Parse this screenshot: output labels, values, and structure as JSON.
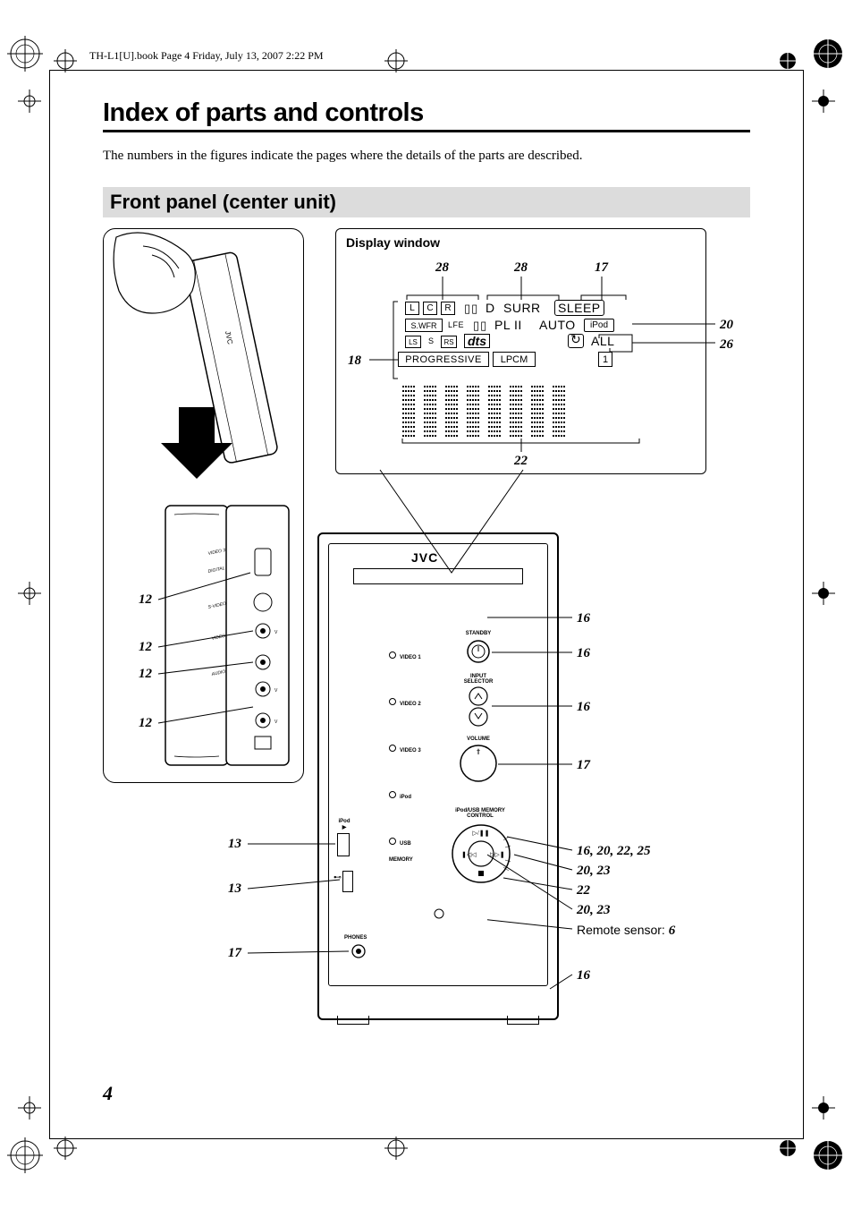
{
  "header": {
    "book_stamp": "TH-L1[U].book  Page 4  Friday, July 13, 2007  2:22 PM"
  },
  "title": "Index of parts and controls",
  "intro": "The numbers in the figures indicate the pages where the details of the parts are described.",
  "section_heading": "Front panel (center unit)",
  "page_number": "4",
  "display_window": {
    "title": "Display window",
    "row1": {
      "L": "L",
      "C": "C",
      "R": "R",
      "dd": "D",
      "surr": "SURR",
      "sleep": "SLEEP"
    },
    "row2": {
      "swfr": "S.WFR",
      "lfe": "LFE",
      "pl2": "PL II",
      "auto": "AUTO",
      "ipod": "iPod"
    },
    "row3": {
      "ls": "LS",
      "s": "S",
      "rs": "RS",
      "dts": "dts",
      "repeat": "↻",
      "all": "ALL"
    },
    "row4": {
      "prog": "PROGRESSIVE",
      "lpcm": "LPCM",
      "one": "1"
    }
  },
  "device": {
    "brand": "JVC",
    "standby": "STANDBY",
    "video1": "VIDEO 1",
    "video2": "VIDEO 2",
    "video3": "VIDEO 3",
    "ipod": "iPod",
    "usb": "USB\nMEMORY",
    "input_selector": "INPUT\nSELECTOR",
    "volume": "VOLUME",
    "ipod_usb_ctrl": "iPod/USB MEMORY\nCONTROL",
    "phones": "PHONES",
    "side_video3": "VIDEO 3",
    "side_digital": "DIGITAL",
    "side_svideo": "S-VIDEO",
    "side_video": "VIDEO",
    "side_audio": "AUDIO",
    "ipod_play": "iPod\n▶"
  },
  "callouts": {
    "dw_top_left": "28",
    "dw_top_mid": "28",
    "dw_top_right": "17",
    "dw_right_1": "20",
    "dw_right_2": "26",
    "dw_left_1": "18",
    "dw_bottom": "22",
    "left_12_a": "12",
    "left_12_b": "12",
    "left_12_c": "12",
    "left_12_d": "12",
    "left_13_a": "13",
    "left_13_b": "13",
    "left_17": "17",
    "right_16_a": "16",
    "right_16_b": "16",
    "right_16_c": "16",
    "right_17": "17",
    "right_combo_1": "16, 20, 22, 25",
    "right_combo_2": "20, 23",
    "right_22": "22",
    "right_combo_3": "20, 23",
    "right_sensor_label": "Remote sensor: ",
    "right_sensor_page": "6",
    "right_16_d": "16"
  },
  "colors": {
    "bg": "#ffffff",
    "ink": "#000000",
    "section_bg": "#dcdcdc"
  }
}
